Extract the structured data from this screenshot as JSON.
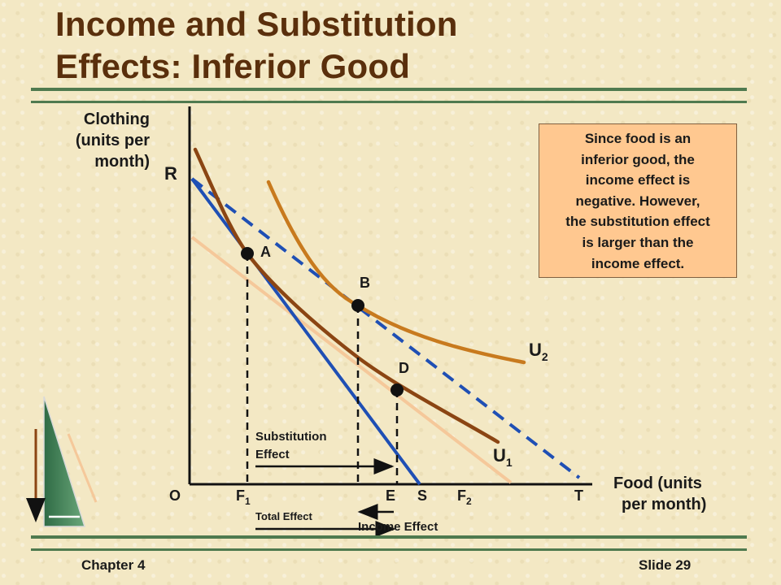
{
  "slide": {
    "title_line1": "Income and Substitution",
    "title_line2": "Effects: Inferior Good",
    "chapter": "Chapter 4",
    "slide_number": "Slide 29"
  },
  "axes": {
    "y_label": [
      "Clothing",
      "(units per",
      "month)"
    ],
    "x_label": [
      "Food (units",
      "per month)"
    ],
    "origin": "O"
  },
  "points": {
    "r": "R",
    "t": "T",
    "f1": "F",
    "f1_sub": "1",
    "e": "E",
    "s": "S",
    "f2": "F",
    "f2_sub": "2"
  },
  "curves": {
    "u1": "U",
    "u1_sub": "1",
    "u2": "U",
    "u2_sub": "2"
  },
  "markers": {
    "a": "A",
    "b": "B",
    "d": "D"
  },
  "effects": {
    "substitution": [
      "Substitution",
      "Effect"
    ],
    "total": "Total Effect",
    "income": "Income Effect"
  },
  "callout": [
    "Since food is an",
    "inferior good, the",
    "income effect is",
    "negative.  However,",
    "the substitution effect",
    "is larger than the",
    "income effect."
  ],
  "colors": {
    "title": "#5a2f0c",
    "budget_original": "#1f4fb4",
    "budget_new": "#1f4fb4",
    "indifference_u1": "#8b4513",
    "indifference_u2": "#c87a1e",
    "parallel_line": "#f5c89a",
    "callout_fill": "#ffc890",
    "rule": "#4f7a4f"
  }
}
